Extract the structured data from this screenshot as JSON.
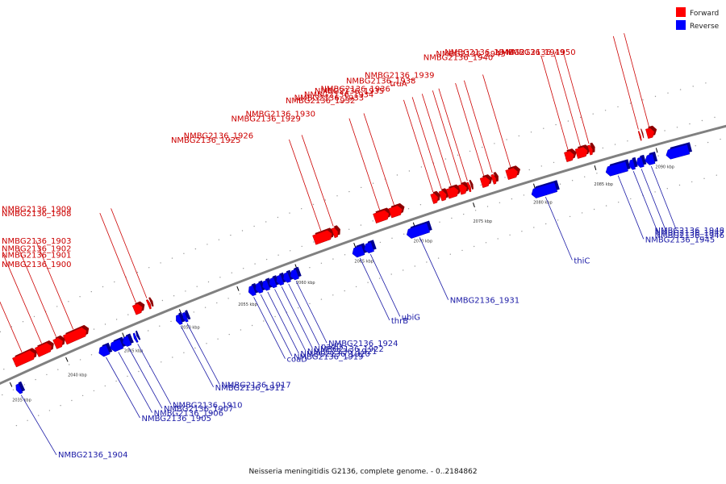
{
  "legend": [
    {
      "label": "Forward",
      "color": "#ff0000"
    },
    {
      "label": "Reverse",
      "color": "#0000ff"
    }
  ],
  "caption": "Neisseria meningitidis G2136, complete genome. - 0..2184862",
  "colors": {
    "forward": "#ff0000",
    "reverse": "#0000ff",
    "backbone": "#808080",
    "forward_label": "#cc0000",
    "reverse_label": "#1a1aa6"
  },
  "scale": {
    "start_kbp": 2035,
    "end_kbp": 2095,
    "ticks": [
      "2035 kbp",
      "2040 kbp",
      "2045 kbp",
      "2050 kbp",
      "2055 kbp",
      "2060 kbp",
      "2065 kbp",
      "2070 kbp",
      "2075 kbp",
      "2080 kbp",
      "2085 kbp",
      "2090 kbp"
    ]
  },
  "genes": [
    {
      "label": "NMBG2136_1900",
      "strand": "forward",
      "start_kbp": 2036.0,
      "end_kbp": 2037.8
    },
    {
      "label": "NMBG2136_1901",
      "strand": "forward",
      "start_kbp": 2038.0,
      "end_kbp": 2039.3
    },
    {
      "label": "NMBG2136_1902",
      "strand": "forward",
      "start_kbp": 2039.6,
      "end_kbp": 2040.3
    },
    {
      "label": "NMBG2136_1903",
      "strand": "forward",
      "start_kbp": 2040.5,
      "end_kbp": 2042.4
    },
    {
      "label": "NMBG2136_1904",
      "strand": "reverse",
      "start_kbp": 2035.2,
      "end_kbp": 2035.6
    },
    {
      "label": "NMBG2136_1905",
      "strand": "reverse",
      "start_kbp": 2042.6,
      "end_kbp": 2043.4
    },
    {
      "label": "NMBG2136_1906",
      "strand": "reverse",
      "start_kbp": 2043.6,
      "end_kbp": 2044.6
    },
    {
      "label": "NMBG2136_1907",
      "strand": "reverse",
      "start_kbp": 2044.7,
      "end_kbp": 2045.3
    },
    {
      "label": "NMBG2136_1908",
      "strand": "forward",
      "start_kbp": 2046.6,
      "end_kbp": 2047.3
    },
    {
      "label": "NMBG2136_1909",
      "strand": "forward",
      "start_kbp": 2047.8,
      "end_kbp": 2048.0
    },
    {
      "label": "NMBG2136_1910",
      "strand": "reverse",
      "start_kbp": 2045.7,
      "end_kbp": 2045.9
    },
    {
      "label": "NMBG2136_1911",
      "strand": "reverse",
      "start_kbp": 2049.4,
      "end_kbp": 2049.8
    },
    {
      "label": "NMBG2136_1917",
      "strand": "reverse",
      "start_kbp": 2050.0,
      "end_kbp": 2050.3
    },
    {
      "label": "coaD",
      "strand": "reverse",
      "start_kbp": 2055.7,
      "end_kbp": 2056.2
    },
    {
      "label": "NMBG2136_1919",
      "strand": "reverse",
      "start_kbp": 2056.3,
      "end_kbp": 2056.8
    },
    {
      "label": "NMBG2136_1920",
      "strand": "reverse",
      "start_kbp": 2056.9,
      "end_kbp": 2057.4
    },
    {
      "label": "NMBG2136_1921",
      "strand": "reverse",
      "start_kbp": 2057.5,
      "end_kbp": 2058.0
    },
    {
      "label": "NMBG2136_1922",
      "strand": "reverse",
      "start_kbp": 2058.1,
      "end_kbp": 2058.6
    },
    {
      "label": "nadD",
      "strand": "reverse",
      "start_kbp": 2058.7,
      "end_kbp": 2059.2
    },
    {
      "label": "NMBG2136_1924",
      "strand": "reverse",
      "start_kbp": 2059.3,
      "end_kbp": 2059.9
    },
    {
      "label": "NMBG2136_1925",
      "strand": "forward",
      "start_kbp": 2062.1,
      "end_kbp": 2063.6
    },
    {
      "label": "NMBG2136_1926",
      "strand": "forward",
      "start_kbp": 2063.7,
      "end_kbp": 2064.1
    },
    {
      "label": "thrB",
      "strand": "reverse",
      "start_kbp": 2064.6,
      "end_kbp": 2065.5
    },
    {
      "label": "ubiG",
      "strand": "reverse",
      "start_kbp": 2065.6,
      "end_kbp": 2066.3
    },
    {
      "label": "NMBG2136_1929",
      "strand": "forward",
      "start_kbp": 2067.2,
      "end_kbp": 2068.4
    },
    {
      "label": "NMBG2136_1930",
      "strand": "forward",
      "start_kbp": 2068.5,
      "end_kbp": 2069.5
    },
    {
      "label": "NMBG2136_1931",
      "strand": "reverse",
      "start_kbp": 2069.2,
      "end_kbp": 2071.0
    },
    {
      "label": "NMBG2136_1932",
      "strand": "forward",
      "start_kbp": 2072.0,
      "end_kbp": 2072.5
    },
    {
      "label": "NMBG2136_1933",
      "strand": "forward",
      "start_kbp": 2072.7,
      "end_kbp": 2073.2
    },
    {
      "label": "NMBG2136_1934",
      "strand": "forward",
      "start_kbp": 2073.3,
      "end_kbp": 2074.2
    },
    {
      "label": "NMBG2136_1935",
      "strand": "forward",
      "start_kbp": 2074.3,
      "end_kbp": 2074.9
    },
    {
      "label": "NMBG2136_1936",
      "strand": "forward",
      "start_kbp": 2075.0,
      "end_kbp": 2075.2
    },
    {
      "label": "truA",
      "strand": "forward",
      "start_kbp": 2076.1,
      "end_kbp": 2076.8
    },
    {
      "label": "NMBG2136_1938",
      "strand": "forward",
      "start_kbp": 2077.0,
      "end_kbp": 2077.3
    },
    {
      "label": "NMBG2136_1939",
      "strand": "forward",
      "start_kbp": 2078.2,
      "end_kbp": 2079.1
    },
    {
      "label": "thiC",
      "strand": "reverse",
      "start_kbp": 2079.6,
      "end_kbp": 2081.6
    },
    {
      "label": "NMBG2136_1940",
      "strand": "forward",
      "start_kbp": 2083.0,
      "end_kbp": 2083.7
    },
    {
      "label": "NMBG2136_1943",
      "strand": "forward",
      "start_kbp": 2083.9,
      "end_kbp": 2084.8
    },
    {
      "label": "NMBG2136_1944",
      "strand": "forward",
      "start_kbp": 2084.9,
      "end_kbp": 2085.2
    },
    {
      "label": "NMBG2136_1945",
      "strand": "reverse",
      "start_kbp": 2085.7,
      "end_kbp": 2087.4
    },
    {
      "label": "NMBG2136_1946",
      "strand": "reverse",
      "start_kbp": 2087.6,
      "end_kbp": 2088.0
    },
    {
      "label": "NMBG2136_1947",
      "strand": "reverse",
      "start_kbp": 2088.2,
      "end_kbp": 2088.7
    },
    {
      "label": "NMBG2136_1948",
      "strand": "reverse",
      "start_kbp": 2088.9,
      "end_kbp": 2089.6
    },
    {
      "label": "NMBG2136_1949",
      "strand": "forward",
      "start_kbp": 2089.0,
      "end_kbp": 2089.1
    },
    {
      "label": "NMBG2136_1950",
      "strand": "forward",
      "start_kbp": 2089.6,
      "end_kbp": 2090.2
    },
    {
      "label": "",
      "strand": "reverse",
      "start_kbp": 2090.6,
      "end_kbp": 2092.4
    }
  ]
}
